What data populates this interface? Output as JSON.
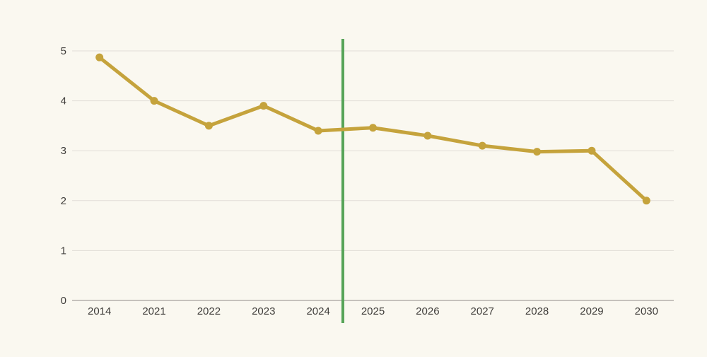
{
  "colors": {
    "background": "#faf8f0",
    "gridline": "#e1ded7",
    "axis_line": "#908d89",
    "tick_text": "#3f3d3a"
  },
  "chart_data": {
    "type": "line",
    "categories": [
      "2014",
      "2021",
      "2022",
      "2023",
      "2024",
      "2025",
      "2026",
      "2027",
      "2028",
      "2029",
      "2030"
    ],
    "values": [
      4.87,
      4.0,
      3.5,
      3.9,
      3.4,
      3.46,
      3.3,
      3.1,
      2.98,
      3.0,
      2.0
    ],
    "line_color": "#c5a33c",
    "marker_color": "#c5a33c",
    "ylim": [
      0,
      5
    ],
    "yticks": [
      0,
      1,
      2,
      3,
      4,
      5
    ],
    "grid": true,
    "legend": false,
    "annotations": [
      {
        "type": "vline",
        "between_categories": [
          "2024",
          "2025"
        ],
        "band_index": 4.45,
        "color": "#55a357"
      }
    ]
  }
}
